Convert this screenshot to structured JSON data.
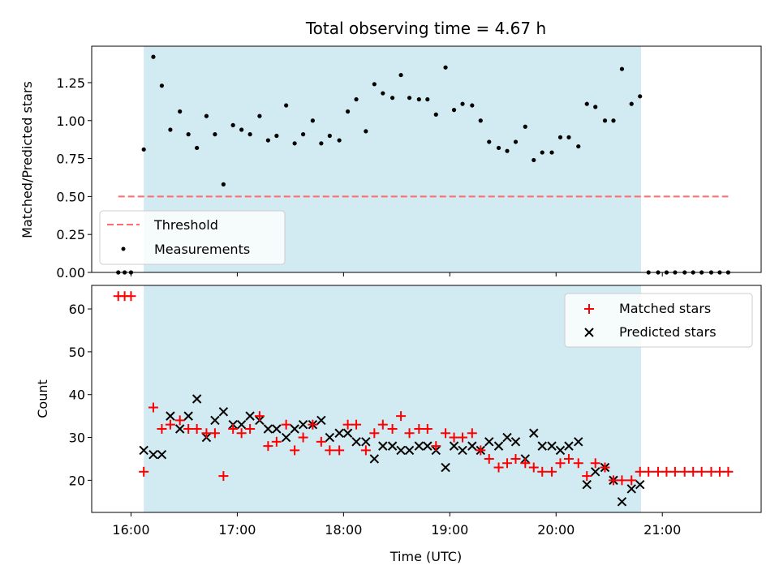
{
  "chart_data": [
    {
      "type": "scatter",
      "panel": "top",
      "title": "Total observing time = 4.67 h",
      "ylabel": "Matched/Predicted stars",
      "xlabel": "",
      "x_unit": "hours UTC",
      "xlim": [
        15.63,
        21.93
      ],
      "ylim": [
        0.0,
        1.49
      ],
      "yticks": [
        "0.00",
        "0.25",
        "0.50",
        "0.75",
        "1.00",
        "1.25"
      ],
      "shaded_interval": [
        16.12,
        20.8
      ],
      "shade_color": "#add8e6",
      "grid": false,
      "legend_position": "lower-left",
      "threshold": {
        "name": "Threshold",
        "value": 0.5,
        "x_range": [
          15.88,
          21.62
        ],
        "color": "#ff6b6b",
        "style": "dashed"
      },
      "series": [
        {
          "name": "Measurements",
          "color": "#000000",
          "marker": "dot",
          "x": [
            15.88,
            15.94,
            16.0,
            16.12,
            16.21,
            16.29,
            16.37,
            16.46,
            16.54,
            16.62,
            16.71,
            16.79,
            16.87,
            16.96,
            17.04,
            17.12,
            17.21,
            17.29,
            17.37,
            17.46,
            17.54,
            17.62,
            17.71,
            17.79,
            17.87,
            17.96,
            18.04,
            18.12,
            18.21,
            18.29,
            18.37,
            18.46,
            18.54,
            18.62,
            18.71,
            18.79,
            18.87,
            18.96,
            19.04,
            19.12,
            19.21,
            19.29,
            19.37,
            19.46,
            19.54,
            19.62,
            19.71,
            19.79,
            19.87,
            19.96,
            20.04,
            20.12,
            20.21,
            20.29,
            20.37,
            20.46,
            20.54,
            20.62,
            20.71,
            20.79,
            20.87,
            20.96,
            21.04,
            21.12,
            21.21,
            21.29,
            21.37,
            21.46,
            21.54,
            21.62
          ],
          "y": [
            0.0,
            0.0,
            0.0,
            0.81,
            1.42,
            1.23,
            0.94,
            1.06,
            0.91,
            0.82,
            1.03,
            0.91,
            0.58,
            0.97,
            0.94,
            0.91,
            1.03,
            0.87,
            0.9,
            1.1,
            0.85,
            0.91,
            1.0,
            0.85,
            0.9,
            0.87,
            1.06,
            1.14,
            0.93,
            1.24,
            1.18,
            1.15,
            1.3,
            1.15,
            1.14,
            1.14,
            1.04,
            1.35,
            1.07,
            1.11,
            1.1,
            1.0,
            0.86,
            0.82,
            0.8,
            0.86,
            0.96,
            0.74,
            0.79,
            0.79,
            0.89,
            0.89,
            0.83,
            1.11,
            1.09,
            1.0,
            1.0,
            1.34,
            1.11,
            1.16,
            0.0,
            0.0,
            0.0,
            0.0,
            0.0,
            0.0,
            0.0,
            0.0,
            0.0,
            0.0
          ]
        }
      ]
    },
    {
      "type": "scatter",
      "panel": "bottom",
      "title": "",
      "ylabel": "Count",
      "xlabel": "Time (UTC)",
      "x_unit": "hours UTC",
      "xlim": [
        15.63,
        21.93
      ],
      "ylim": [
        12.5,
        65.5
      ],
      "yticks": [
        "20",
        "30",
        "40",
        "50",
        "60"
      ],
      "xticks": [
        "16:00",
        "17:00",
        "18:00",
        "19:00",
        "20:00",
        "21:00"
      ],
      "xtick_values": [
        16,
        17,
        18,
        19,
        20,
        21
      ],
      "shaded_interval": [
        16.12,
        20.8
      ],
      "shade_color": "#add8e6",
      "grid": false,
      "legend_position": "upper-right",
      "series": [
        {
          "name": "Matched stars",
          "color": "#ff0000",
          "marker": "plus",
          "x": [
            15.88,
            15.94,
            16.0,
            16.12,
            16.21,
            16.29,
            16.37,
            16.46,
            16.54,
            16.62,
            16.71,
            16.79,
            16.87,
            16.96,
            17.04,
            17.12,
            17.21,
            17.29,
            17.37,
            17.46,
            17.54,
            17.62,
            17.71,
            17.79,
            17.87,
            17.96,
            18.04,
            18.12,
            18.21,
            18.29,
            18.37,
            18.46,
            18.54,
            18.62,
            18.71,
            18.79,
            18.87,
            18.96,
            19.04,
            19.12,
            19.21,
            19.29,
            19.37,
            19.46,
            19.54,
            19.62,
            19.71,
            19.79,
            19.87,
            19.96,
            20.04,
            20.12,
            20.21,
            20.29,
            20.37,
            20.46,
            20.54,
            20.62,
            20.71,
            20.79,
            20.87,
            20.96,
            21.04,
            21.12,
            21.21,
            21.29,
            21.37,
            21.46,
            21.54,
            21.62
          ],
          "y": [
            63,
            63,
            63,
            22,
            37,
            32,
            33,
            34,
            32,
            32,
            31,
            31,
            21,
            32,
            31,
            32,
            35,
            28,
            29,
            33,
            27,
            30,
            33,
            29,
            27,
            27,
            33,
            33,
            27,
            31,
            33,
            32,
            35,
            31,
            32,
            32,
            28,
            31,
            30,
            30,
            31,
            27,
            25,
            23,
            24,
            25,
            24,
            23,
            22,
            22,
            24,
            25,
            24,
            21,
            24,
            23,
            20,
            20,
            20,
            22,
            22,
            22,
            22,
            22,
            22,
            22,
            22,
            22,
            22,
            22
          ]
        },
        {
          "name": "Predicted stars",
          "color": "#000000",
          "marker": "x",
          "x": [
            16.12,
            16.21,
            16.29,
            16.37,
            16.46,
            16.54,
            16.62,
            16.71,
            16.79,
            16.87,
            16.96,
            17.04,
            17.12,
            17.21,
            17.29,
            17.37,
            17.46,
            17.54,
            17.62,
            17.71,
            17.79,
            17.87,
            17.96,
            18.04,
            18.12,
            18.21,
            18.29,
            18.37,
            18.46,
            18.54,
            18.62,
            18.71,
            18.79,
            18.87,
            18.96,
            19.04,
            19.12,
            19.21,
            19.29,
            19.37,
            19.46,
            19.54,
            19.62,
            19.71,
            19.79,
            19.87,
            19.96,
            20.04,
            20.12,
            20.21,
            20.29,
            20.37,
            20.46,
            20.54,
            20.62,
            20.71,
            20.79
          ],
          "y": [
            27,
            26,
            26,
            35,
            32,
            35,
            39,
            30,
            34,
            36,
            33,
            33,
            35,
            34,
            32,
            32,
            30,
            32,
            33,
            33,
            34,
            30,
            31,
            31,
            29,
            29,
            25,
            28,
            28,
            27,
            27,
            28,
            28,
            27,
            23,
            28,
            27,
            28,
            27,
            29,
            28,
            30,
            29,
            25,
            31,
            28,
            28,
            27,
            28,
            29,
            19,
            22,
            23,
            20,
            15,
            18,
            19
          ]
        }
      ]
    }
  ]
}
